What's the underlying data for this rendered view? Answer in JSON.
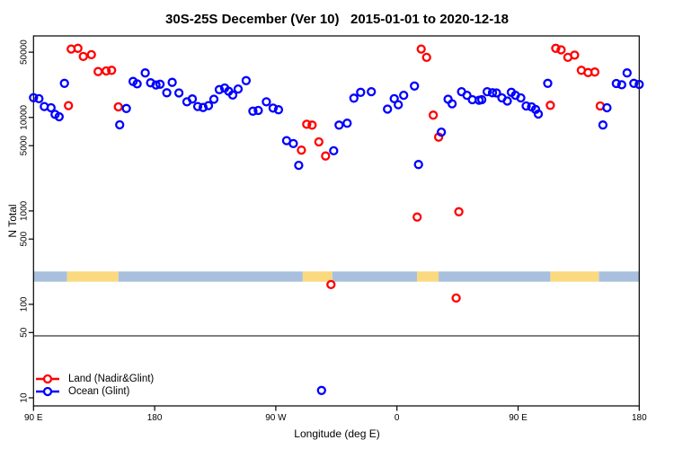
{
  "title": "30S-25S December (Ver 10)   2015-01-01 to 2020-12-18",
  "legend": {
    "items": [
      {
        "label": "Land (Nadir&Glint)",
        "color": "#ff0000"
      },
      {
        "label": "Ocean (Glint)",
        "color": "#0000ff"
      }
    ]
  },
  "chart_data": {
    "type": "scatter",
    "title": "30S-25S December (Ver 10)   2015-01-01 to 2020-12-18",
    "xlabel": "Longitude (deg E)",
    "ylabel": "N Total",
    "x_axis": {
      "range_deg": [
        90,
        540
      ],
      "ticks": [
        {
          "lon": 90,
          "label": "90 E"
        },
        {
          "lon": 180,
          "label": "180"
        },
        {
          "lon": 270,
          "label": "90 W"
        },
        {
          "lon": 360,
          "label": "0"
        },
        {
          "lon": 450,
          "label": "90 E"
        },
        {
          "lon": 540,
          "label": "180"
        }
      ]
    },
    "y_axis": {
      "scale": "log",
      "ticks": [
        10,
        50,
        100,
        500,
        1000,
        5000,
        10000,
        50000
      ],
      "range": [
        8,
        75000
      ]
    },
    "grid": false,
    "legend_position": "bottom-left",
    "threshold_line_value": 46,
    "surface_band": {
      "top_value": 225,
      "bottom_value": 175,
      "colors": {
        "land": "#fbd97f",
        "ocean": "#a8c0de"
      },
      "segments": [
        {
          "surface": "ocean",
          "from": 90,
          "to": 115
        },
        {
          "surface": "land",
          "from": 115,
          "to": 153
        },
        {
          "surface": "ocean",
          "from": 153,
          "to": 290
        },
        {
          "surface": "land",
          "from": 290,
          "to": 312
        },
        {
          "surface": "ocean",
          "from": 312,
          "to": 375
        },
        {
          "surface": "land",
          "from": 375,
          "to": 391
        },
        {
          "surface": "ocean",
          "from": 391,
          "to": 474
        },
        {
          "surface": "land",
          "from": 474,
          "to": 510
        },
        {
          "surface": "ocean",
          "from": 510,
          "to": 540
        }
      ]
    },
    "series": [
      {
        "name": "Land (Nadir&Glint)",
        "color": "#ff0000",
        "points": [
          [
            116,
            13400
          ],
          [
            118,
            54000
          ],
          [
            123,
            55000
          ],
          [
            127,
            45000
          ],
          [
            133,
            47000
          ],
          [
            138,
            31000
          ],
          [
            144,
            31500
          ],
          [
            148,
            32000
          ],
          [
            153,
            13000
          ],
          [
            289,
            4470
          ],
          [
            293,
            8470
          ],
          [
            297,
            8290
          ],
          [
            302,
            5480
          ],
          [
            307,
            3870
          ],
          [
            311,
            163
          ],
          [
            375,
            860
          ],
          [
            378,
            54000
          ],
          [
            382,
            44000
          ],
          [
            387,
            10600
          ],
          [
            391,
            6170
          ],
          [
            404,
            117
          ],
          [
            406,
            980
          ],
          [
            474,
            13500
          ],
          [
            478,
            55000
          ],
          [
            482,
            53000
          ],
          [
            487,
            44000
          ],
          [
            492,
            46500
          ],
          [
            497,
            32000
          ],
          [
            502,
            30300
          ],
          [
            507,
            30700
          ],
          [
            511,
            13300
          ]
        ]
      },
      {
        "name": "Ocean (Glint)",
        "color": "#0000ff",
        "points": [
          [
            90,
            16300
          ],
          [
            94,
            15900
          ],
          [
            98,
            13100
          ],
          [
            103,
            12700
          ],
          [
            106,
            10800
          ],
          [
            109,
            10200
          ],
          [
            113,
            23200
          ],
          [
            154,
            8350
          ],
          [
            159,
            12500
          ],
          [
            164,
            24300
          ],
          [
            167,
            22900
          ],
          [
            173,
            30000
          ],
          [
            177,
            23500
          ],
          [
            181,
            22300
          ],
          [
            184,
            22700
          ],
          [
            189,
            18400
          ],
          [
            193,
            23800
          ],
          [
            198,
            18300
          ],
          [
            204,
            14700
          ],
          [
            208,
            15800
          ],
          [
            212,
            13100
          ],
          [
            216,
            12800
          ],
          [
            220,
            13400
          ],
          [
            224,
            15700
          ],
          [
            228,
            19900
          ],
          [
            232,
            20700
          ],
          [
            235,
            19100
          ],
          [
            238,
            17400
          ],
          [
            242,
            20200
          ],
          [
            248,
            24800
          ],
          [
            253,
            11700
          ],
          [
            257,
            11900
          ],
          [
            263,
            14700
          ],
          [
            268,
            12600
          ],
          [
            272,
            12100
          ],
          [
            278,
            5650
          ],
          [
            283,
            5260
          ],
          [
            287,
            3080
          ],
          [
            304,
            12
          ],
          [
            313,
            4400
          ],
          [
            317,
            8290
          ],
          [
            323,
            8690
          ],
          [
            328,
            16100
          ],
          [
            333,
            18600
          ],
          [
            341,
            18900
          ],
          [
            353,
            12300
          ],
          [
            358,
            15900
          ],
          [
            361,
            13700
          ],
          [
            365,
            17300
          ],
          [
            373,
            21700
          ],
          [
            376,
            3140
          ],
          [
            393,
            6980
          ],
          [
            398,
            15700
          ],
          [
            401,
            14000
          ],
          [
            408,
            18900
          ],
          [
            412,
            17300
          ],
          [
            416,
            15500
          ],
          [
            421,
            15300
          ],
          [
            423,
            15500
          ],
          [
            427,
            18900
          ],
          [
            431,
            18400
          ],
          [
            434,
            18300
          ],
          [
            438,
            16200
          ],
          [
            442,
            15000
          ],
          [
            445,
            18600
          ],
          [
            448,
            17300
          ],
          [
            452,
            16200
          ],
          [
            456,
            13300
          ],
          [
            460,
            13000
          ],
          [
            463,
            12200
          ],
          [
            465,
            10900
          ],
          [
            472,
            23200
          ],
          [
            513,
            8320
          ],
          [
            516,
            12700
          ],
          [
            523,
            23100
          ],
          [
            527,
            22400
          ],
          [
            531,
            30000
          ],
          [
            536,
            23200
          ],
          [
            540,
            22600
          ]
        ]
      }
    ]
  }
}
